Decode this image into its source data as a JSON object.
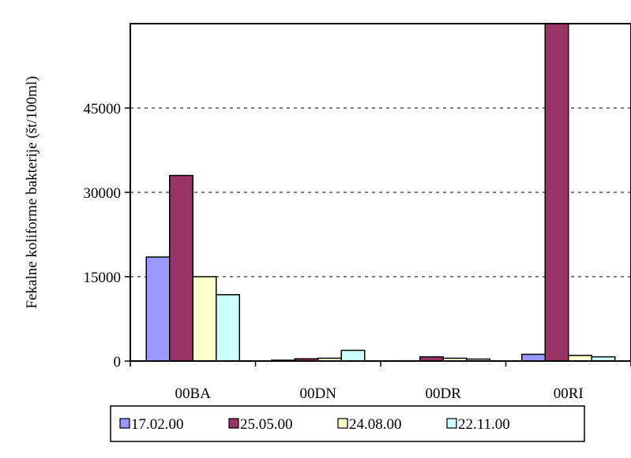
{
  "chart_data": {
    "type": "bar",
    "title": "",
    "xlabel": "",
    "ylabel": "Fekalne koliforme bakterije (št/100ml)",
    "categories": [
      "00BA",
      "00DN",
      "00DR",
      "00RI"
    ],
    "series": [
      {
        "name": "17.02.00",
        "color": "#9999ff",
        "values": [
          18500,
          150,
          50,
          1200
        ]
      },
      {
        "name": "25.05.00",
        "color": "#993366",
        "values": [
          33000,
          400,
          750,
          60000
        ]
      },
      {
        "name": "24.08.00",
        "color": "#ffffcc",
        "values": [
          15000,
          500,
          500,
          1000
        ]
      },
      {
        "name": "22.11.00",
        "color": "#ccffff",
        "values": [
          11800,
          1900,
          350,
          750
        ]
      }
    ],
    "yticks": [
      0,
      15000,
      30000,
      45000
    ],
    "ytick_labels": [
      "0",
      "15000",
      "30000",
      "45000"
    ],
    "ylim": [
      0,
      60000
    ],
    "grid": "horizontal dashed",
    "legend_position": "bottom"
  }
}
